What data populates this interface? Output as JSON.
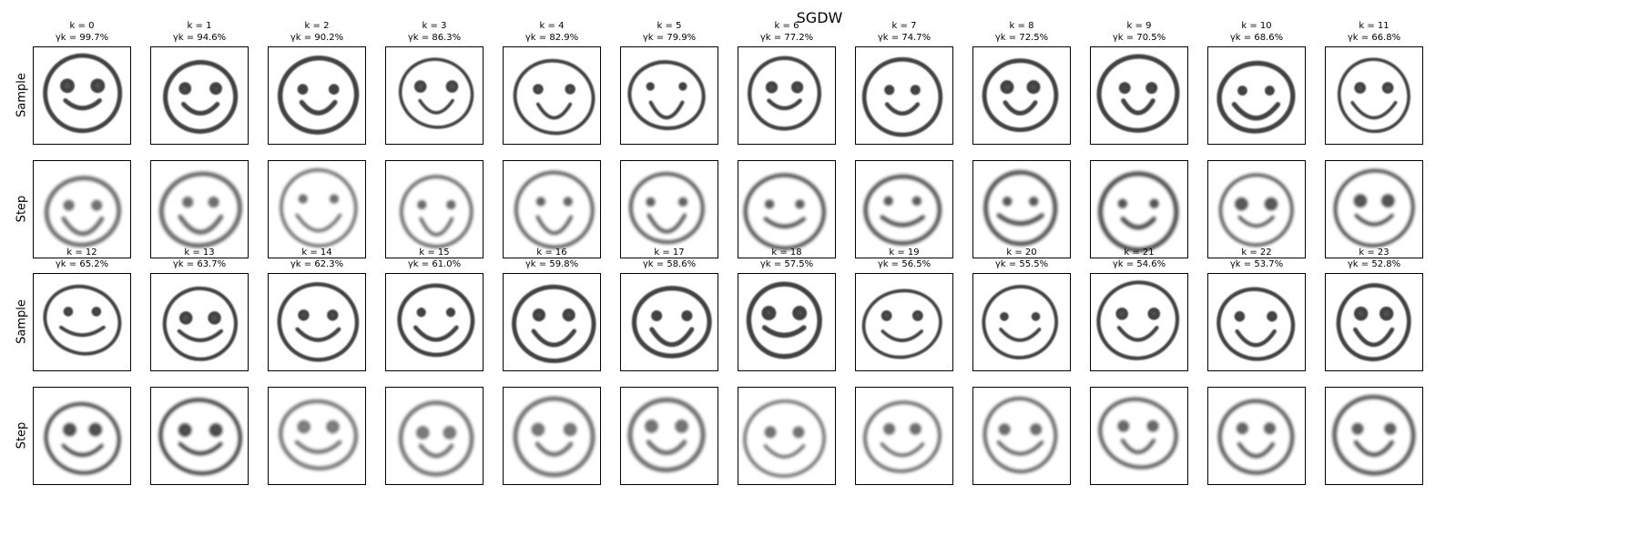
{
  "figure": {
    "title": "SGDW",
    "row_labels": [
      "Sample",
      "Step",
      "Sample",
      "Step"
    ],
    "columns": [
      {
        "k": "k = 0",
        "gamma": "γk = 99.7%"
      },
      {
        "k": "k = 1",
        "gamma": "γk = 94.6%"
      },
      {
        "k": "k = 2",
        "gamma": "γk = 90.2%"
      },
      {
        "k": "k = 3",
        "gamma": "γk = 86.3%"
      },
      {
        "k": "k = 4",
        "gamma": "γk = 82.9%"
      },
      {
        "k": "k = 5",
        "gamma": "γk = 79.9%"
      },
      {
        "k": "k = 6",
        "gamma": "γk = 77.2%"
      },
      {
        "k": "k = 7",
        "gamma": "γk = 74.7%"
      },
      {
        "k": "k = 8",
        "gamma": "γk = 72.5%"
      },
      {
        "k": "k = 9",
        "gamma": "γk = 70.5%"
      },
      {
        "k": "k = 10",
        "gamma": "γk = 68.6%"
      },
      {
        "k": "k = 11",
        "gamma": "γk = 66.8%"
      },
      {
        "k": "k = 12",
        "gamma": "γk = 65.2%"
      },
      {
        "k": "k = 13",
        "gamma": "γk = 63.7%"
      },
      {
        "k": "k = 14",
        "gamma": "γk = 62.3%"
      },
      {
        "k": "k = 15",
        "gamma": "γk = 61.0%"
      },
      {
        "k": "k = 16",
        "gamma": "γk = 59.8%"
      },
      {
        "k": "k = 17",
        "gamma": "γk = 58.6%"
      },
      {
        "k": "k = 18",
        "gamma": "γk = 57.5%"
      },
      {
        "k": "k = 19",
        "gamma": "γk = 56.5%"
      },
      {
        "k": "k = 20",
        "gamma": "γk = 55.5%"
      },
      {
        "k": "k = 21",
        "gamma": "γk = 54.6%"
      },
      {
        "k": "k = 22",
        "gamma": "γk = 53.7%"
      },
      {
        "k": "k = 23",
        "gamma": "γk = 52.8%"
      }
    ],
    "image_subject": "smiley-face doodle"
  }
}
